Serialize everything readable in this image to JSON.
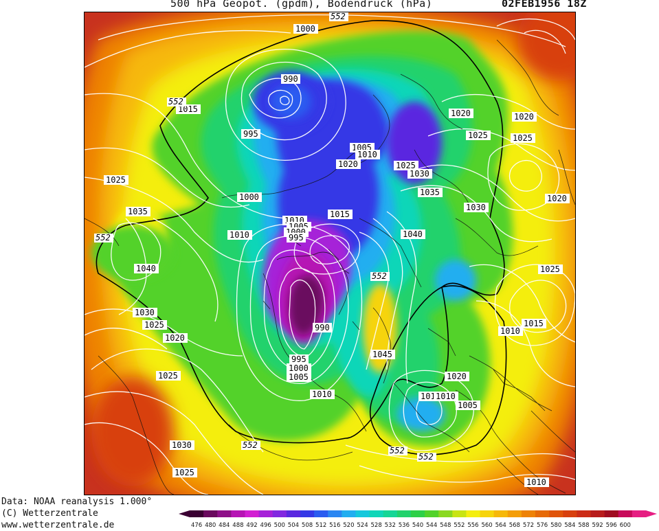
{
  "header": {
    "title": "500 hPa Geopot. (gpdm), Bodendruck (hPa)",
    "date": "02FEB1956 18Z"
  },
  "credits": {
    "line1": "Data: NOAA reanalysis 1.000°",
    "line2": "(C) Wetterzentrale",
    "line3": "www.wetterzentrale.de"
  },
  "colorbar": {
    "ticks": [
      "476",
      "480",
      "484",
      "488",
      "492",
      "496",
      "500",
      "504",
      "508",
      "512",
      "516",
      "520",
      "524",
      "528",
      "532",
      "536",
      "540",
      "544",
      "548",
      "552",
      "556",
      "560",
      "564",
      "568",
      "572",
      "576",
      "580",
      "584",
      "588",
      "592",
      "596",
      "600"
    ],
    "colors": [
      "#3a0032",
      "#6a0a5e",
      "#8e1088",
      "#b614b4",
      "#d21ed2",
      "#a620d8",
      "#8228e0",
      "#5a28e0",
      "#3438e6",
      "#2a5cf0",
      "#2a86f2",
      "#22aef0",
      "#16c8dc",
      "#10d6b8",
      "#16d696",
      "#22d26c",
      "#2ed048",
      "#52d22a",
      "#8ad820",
      "#c8e414",
      "#f4ee10",
      "#f6d40c",
      "#f6b80a",
      "#f49e08",
      "#ee8206",
      "#e66a08",
      "#e0540a",
      "#d8400e",
      "#cc2c16",
      "#b81c1c",
      "#a00c20",
      "#c80a5a",
      "#e61e82"
    ]
  },
  "map": {
    "contour_labels": [
      {
        "text": "1000",
        "kind": "pressure"
      },
      {
        "text": "552",
        "kind": "geopotential"
      },
      {
        "text": "990",
        "kind": "pressure"
      },
      {
        "text": "1015",
        "kind": "pressure"
      },
      {
        "text": "995",
        "kind": "pressure"
      },
      {
        "text": "1020",
        "kind": "pressure"
      },
      {
        "text": "1025",
        "kind": "pressure"
      },
      {
        "text": "1005",
        "kind": "pressure"
      },
      {
        "text": "1010",
        "kind": "pressure"
      },
      {
        "text": "1030",
        "kind": "pressure"
      },
      {
        "text": "1035",
        "kind": "pressure"
      },
      {
        "text": "1040",
        "kind": "pressure"
      },
      {
        "text": "1045",
        "kind": "pressure"
      }
    ]
  }
}
